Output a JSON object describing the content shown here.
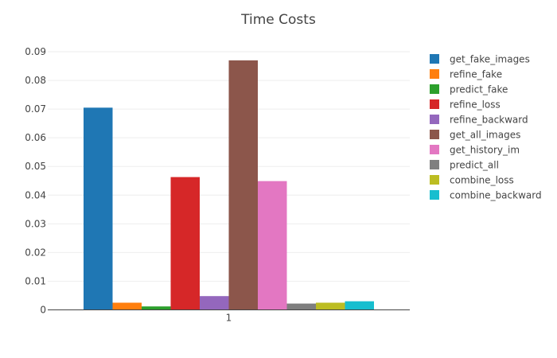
{
  "chart_data": {
    "type": "bar",
    "title": "Time Costs",
    "xlabel": "",
    "ylabel": "",
    "categories": [
      "1"
    ],
    "ylim": [
      0,
      0.095
    ],
    "yticks": [
      0,
      0.01,
      0.02,
      0.03,
      0.04,
      0.05,
      0.06,
      0.07,
      0.08,
      0.09
    ],
    "ytick_labels": [
      "0",
      "0.01",
      "0.02",
      "0.03",
      "0.04",
      "0.05",
      "0.06",
      "0.07",
      "0.08",
      "0.09"
    ],
    "grid": true,
    "legend_position": "right",
    "series": [
      {
        "name": "get_fake_images",
        "values": [
          0.0705
        ],
        "color": "#1f77b4"
      },
      {
        "name": "refine_fake",
        "values": [
          0.0025
        ],
        "color": "#ff7f0e"
      },
      {
        "name": "predict_fake",
        "values": [
          0.0012
        ],
        "color": "#2ca02c"
      },
      {
        "name": "refine_loss",
        "values": [
          0.0463
        ],
        "color": "#d62728"
      },
      {
        "name": "refine_backward",
        "values": [
          0.0048
        ],
        "color": "#9467bd"
      },
      {
        "name": "get_all_images",
        "values": [
          0.087
        ],
        "color": "#8c564b"
      },
      {
        "name": "get_history_im",
        "values": [
          0.0449
        ],
        "color": "#e377c2"
      },
      {
        "name": "predict_all",
        "values": [
          0.0022
        ],
        "color": "#7f7f7f"
      },
      {
        "name": "combine_loss",
        "values": [
          0.0025
        ],
        "color": "#bcbd22"
      },
      {
        "name": "combine_backward",
        "values": [
          0.003
        ],
        "color": "#17becf"
      }
    ]
  }
}
